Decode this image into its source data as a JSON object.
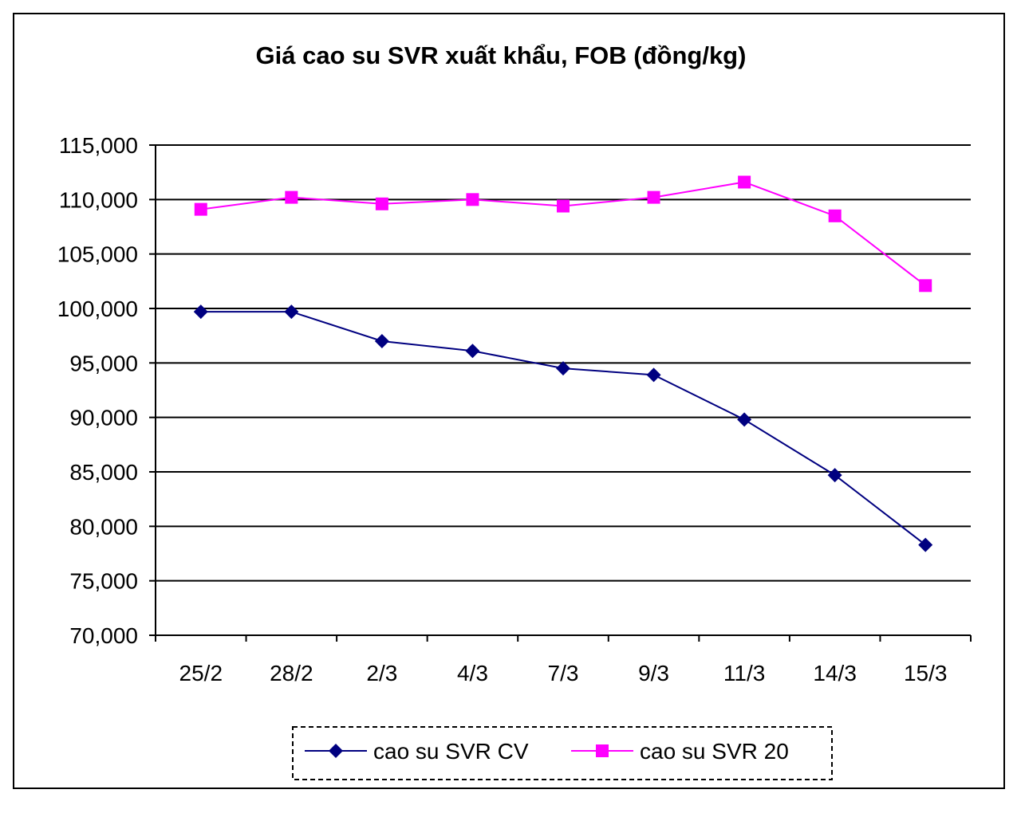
{
  "chart_data": {
    "type": "line",
    "title": "Giá cao su SVR xuất khẩu, FOB (đồng/kg)",
    "xlabel": "",
    "ylabel": "",
    "categories": [
      "25/2",
      "28/2",
      "2/3",
      "4/3",
      "7/3",
      "9/3",
      "11/3",
      "14/3",
      "15/3"
    ],
    "ylim": [
      70000,
      115000
    ],
    "yticks": [
      70000,
      75000,
      80000,
      85000,
      90000,
      95000,
      100000,
      105000,
      110000,
      115000
    ],
    "ytick_labels": [
      "70,000",
      "75,000",
      "80,000",
      "85,000",
      "90,000",
      "95,000",
      "100,000",
      "105,000",
      "110,000",
      "115,000"
    ],
    "grid": true,
    "legend_position": "bottom",
    "series": [
      {
        "name": "cao su SVR CV",
        "color": "#000080",
        "marker": "diamond",
        "values": [
          99700,
          99700,
          97000,
          96100,
          94500,
          93900,
          89800,
          84700,
          78300
        ]
      },
      {
        "name": "cao su SVR 20",
        "color": "#ff00ff",
        "marker": "square",
        "values": [
          109100,
          110200,
          109600,
          110000,
          109400,
          110200,
          111600,
          108500,
          102100
        ]
      }
    ]
  }
}
